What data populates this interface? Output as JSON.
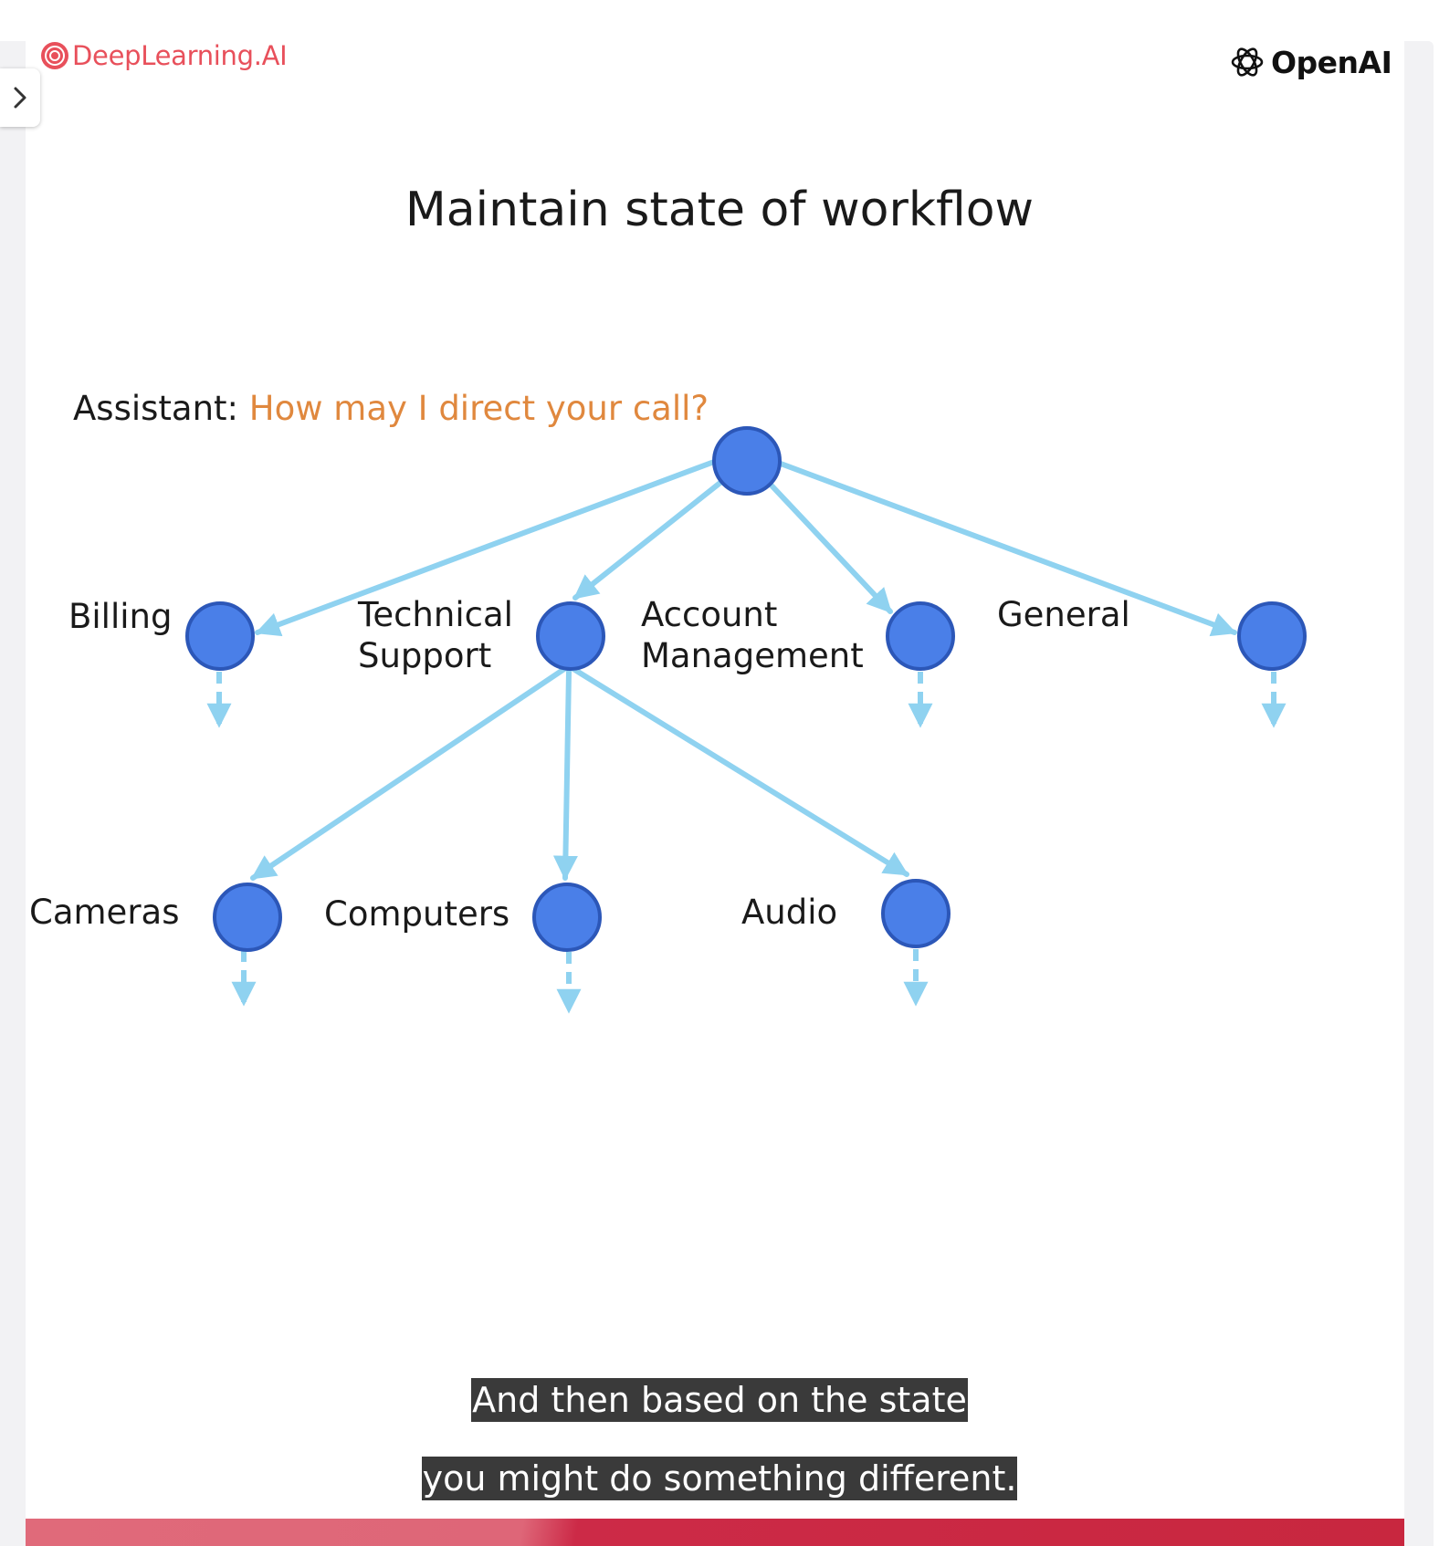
{
  "brand": {
    "left_logo_text": "DeepLearning.AI",
    "right_logo_text": "OpenAI",
    "left_logo_icon": "deeplearning-logo-icon",
    "right_logo_icon": "openai-logo-icon"
  },
  "sidebar_toggle": {
    "icon": "chevron-right-icon"
  },
  "slide": {
    "title": "Maintain state of workflow",
    "assistant_speaker": "Assistant:",
    "assistant_question": "How may I direct your call?"
  },
  "diagram": {
    "level1": [
      {
        "label": "Billing"
      },
      {
        "label_line1": "Technical",
        "label_line2": "Support"
      },
      {
        "label_line1": "Account",
        "label_line2": "Management"
      },
      {
        "label": "General"
      }
    ],
    "level2": [
      {
        "label": "Cameras"
      },
      {
        "label": "Computers"
      },
      {
        "label": "Audio"
      }
    ]
  },
  "caption": {
    "line1": "And then based on the state",
    "line2": "you might do something different."
  },
  "colors": {
    "node_fill": "#4a7fe8",
    "node_stroke": "#2c57b8",
    "edge": "#8fd2f0",
    "question": "#e0883e",
    "brand_red": "#e8505b",
    "bar": "#cc2a47"
  }
}
